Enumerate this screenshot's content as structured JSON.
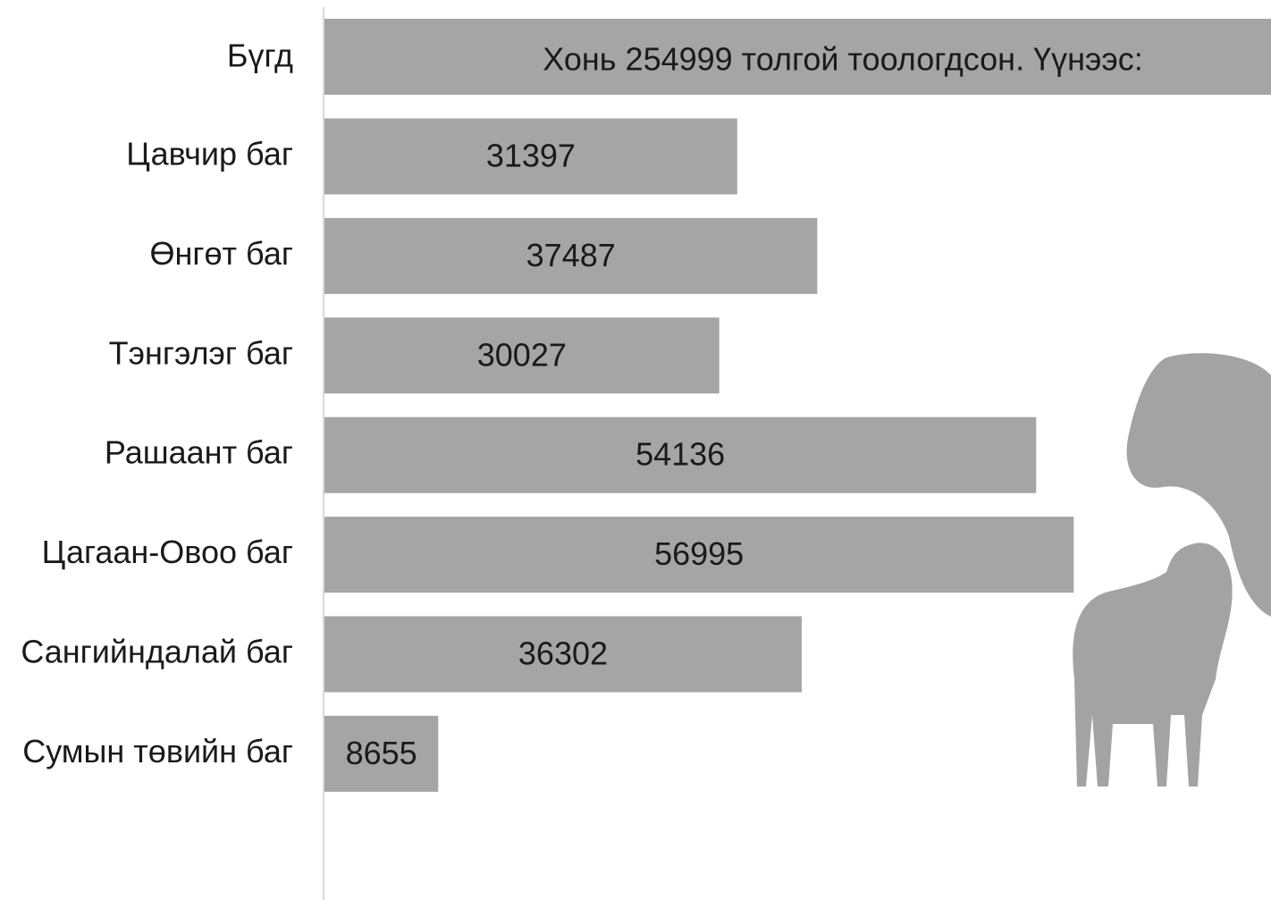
{
  "chart_data": {
    "type": "bar",
    "orientation": "horizontal",
    "total": {
      "category": "Бүгд",
      "label": "Хонь 254999 толгой тоологдсон. Үүнээс:"
    },
    "categories": [
      "Цавчир баг",
      "Өнгөт баг",
      "Тэнгэлэг баг",
      "Рашаант баг",
      "Цагаан-Овоо баг",
      "Сангийндалай баг",
      "Сумын төвийн баг"
    ],
    "values": [
      31397,
      37487,
      30027,
      54136,
      56995,
      36302,
      8655
    ],
    "color": "#a5a5a5",
    "xlim": [
      0,
      72000
    ]
  }
}
